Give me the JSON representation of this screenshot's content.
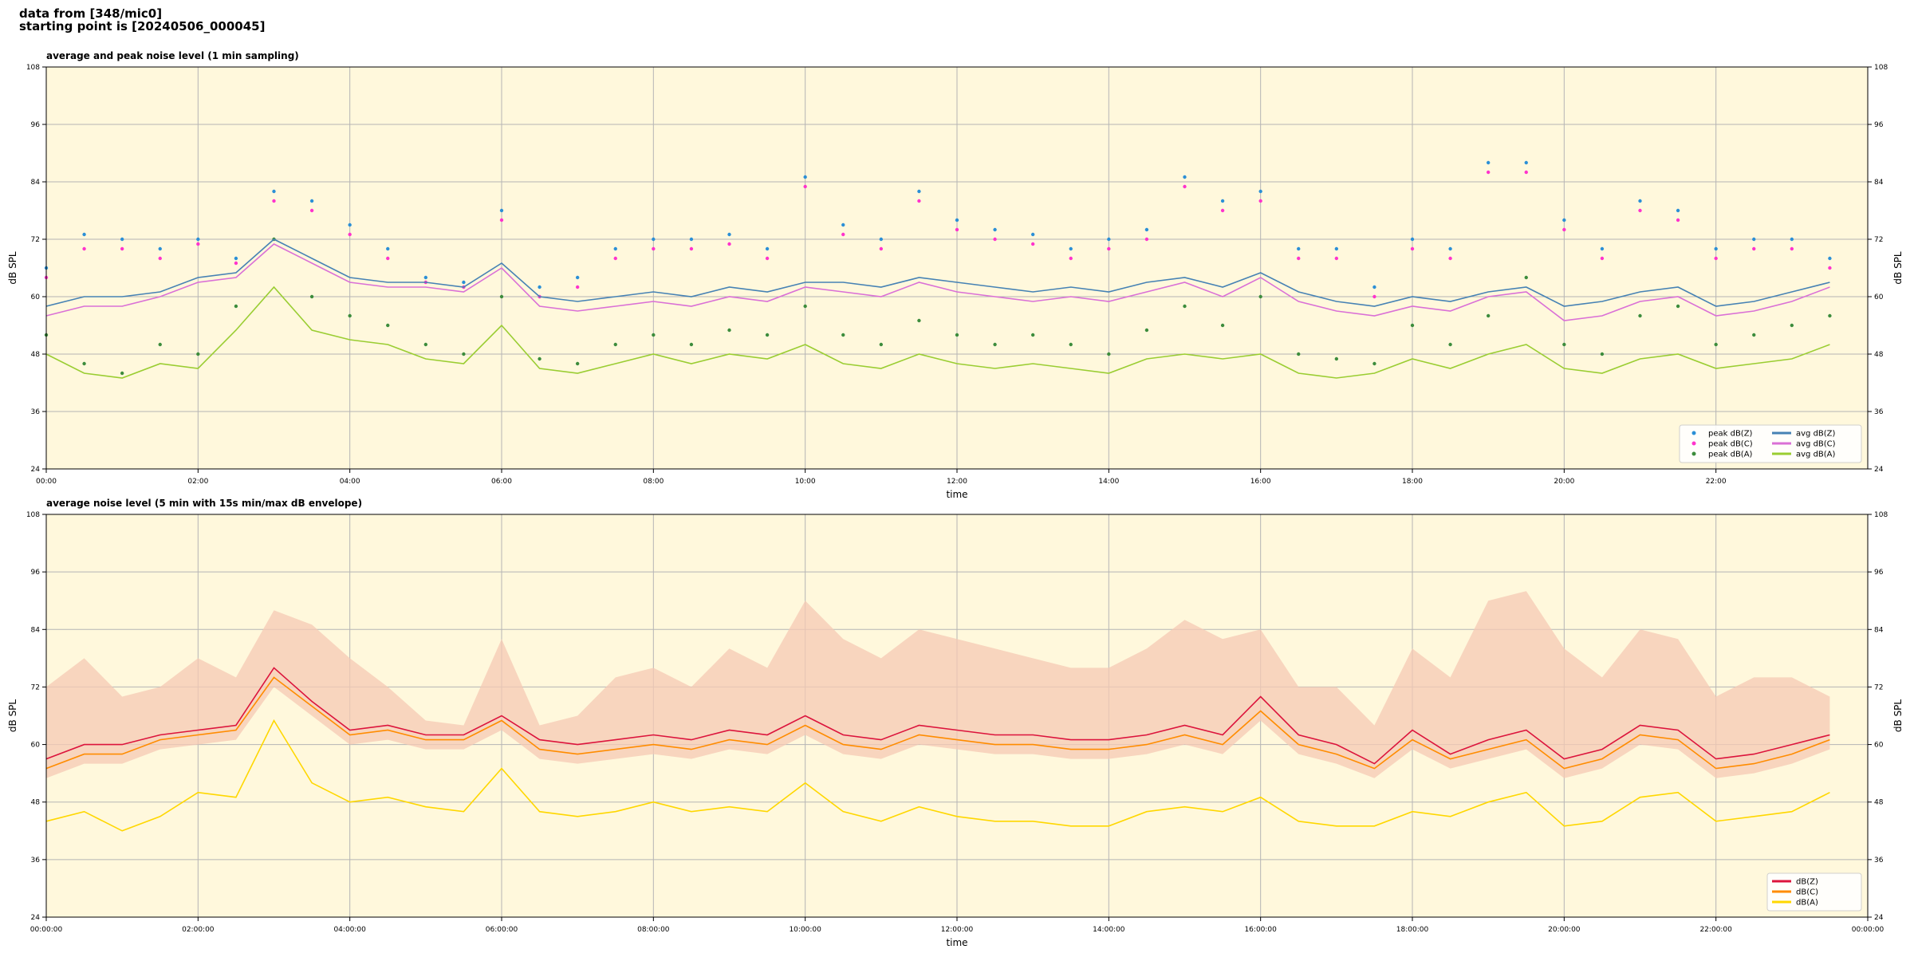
{
  "header": [
    "data from [348/mic0]",
    "starting point is [20240506_000045]"
  ],
  "chart_data": [
    {
      "type": "line",
      "title": "average and peak noise level (1 min sampling)",
      "xlabel": "time",
      "ylabel": "dB SPL",
      "xlim": [
        0,
        24
      ],
      "ylim": [
        24,
        108
      ],
      "yticks": [
        24,
        36,
        48,
        60,
        72,
        84,
        96,
        108
      ],
      "xticks": [
        {
          "value": 0,
          "label": "00:00"
        },
        {
          "value": 2,
          "label": "02:00"
        },
        {
          "value": 4,
          "label": "04:00"
        },
        {
          "value": 6,
          "label": "06:00"
        },
        {
          "value": 8,
          "label": "08:00"
        },
        {
          "value": 10,
          "label": "10:00"
        },
        {
          "value": 12,
          "label": "12:00"
        },
        {
          "value": 14,
          "label": "14:00"
        },
        {
          "value": 16,
          "label": "16:00"
        },
        {
          "value": 18,
          "label": "18:00"
        },
        {
          "value": 20,
          "label": "20:00"
        },
        {
          "value": 22,
          "label": "22:00"
        }
      ],
      "grid": true,
      "legend": "lower right",
      "legend_columns": 2,
      "background": "#fff8dc",
      "x": [
        0,
        0.5,
        1,
        1.5,
        2,
        2.5,
        3,
        3.5,
        4,
        4.5,
        5,
        5.5,
        6,
        6.5,
        7,
        7.5,
        8,
        8.5,
        9,
        9.5,
        10,
        10.5,
        11,
        11.5,
        12,
        12.5,
        13,
        13.5,
        14,
        14.5,
        15,
        15.5,
        16,
        16.5,
        17,
        17.5,
        18,
        18.5,
        19,
        19.5,
        20,
        20.5,
        21,
        21.5,
        22,
        22.5,
        23,
        23.5
      ],
      "series": [
        {
          "name": "peak dB(Z)",
          "color": "#2b8fd6",
          "marker": true,
          "values": [
            66,
            73,
            72,
            70,
            72,
            68,
            82,
            80,
            75,
            70,
            64,
            63,
            78,
            62,
            64,
            70,
            72,
            72,
            73,
            70,
            85,
            75,
            72,
            82,
            76,
            74,
            73,
            70,
            72,
            74,
            85,
            80,
            82,
            70,
            70,
            62,
            72,
            70,
            88,
            88,
            76,
            70,
            80,
            78,
            70,
            72,
            72,
            68
          ]
        },
        {
          "name": "peak dB(C)",
          "color": "#ff33cc",
          "marker": true,
          "values": [
            64,
            70,
            70,
            68,
            71,
            67,
            80,
            78,
            73,
            68,
            63,
            62,
            76,
            60,
            62,
            68,
            70,
            70,
            71,
            68,
            83,
            73,
            70,
            80,
            74,
            72,
            71,
            68,
            70,
            72,
            83,
            78,
            80,
            68,
            68,
            60,
            70,
            68,
            86,
            86,
            74,
            68,
            78,
            76,
            68,
            70,
            70,
            66
          ]
        },
        {
          "name": "peak dB(A)",
          "color": "#3c8c3c",
          "marker": true,
          "values": [
            52,
            46,
            44,
            50,
            48,
            58,
            72,
            60,
            56,
            54,
            50,
            48,
            60,
            47,
            46,
            50,
            52,
            50,
            53,
            52,
            58,
            52,
            50,
            55,
            52,
            50,
            52,
            50,
            48,
            53,
            58,
            54,
            60,
            48,
            47,
            46,
            54,
            50,
            56,
            64,
            50,
            48,
            56,
            58,
            50,
            52,
            54,
            56
          ]
        },
        {
          "name": "avg dB(Z)",
          "color": "#4682b4",
          "marker": false,
          "values": [
            58,
            60,
            60,
            61,
            64,
            65,
            72,
            68,
            64,
            63,
            63,
            62,
            67,
            60,
            59,
            60,
            61,
            60,
            62,
            61,
            63,
            63,
            62,
            64,
            63,
            62,
            61,
            62,
            61,
            63,
            64,
            62,
            65,
            61,
            59,
            58,
            60,
            59,
            61,
            62,
            58,
            59,
            61,
            62,
            58,
            59,
            61,
            63
          ]
        },
        {
          "name": "avg dB(C)",
          "color": "#da70d6",
          "marker": false,
          "values": [
            56,
            58,
            58,
            60,
            63,
            64,
            71,
            67,
            63,
            62,
            62,
            61,
            66,
            58,
            57,
            58,
            59,
            58,
            60,
            59,
            62,
            61,
            60,
            63,
            61,
            60,
            59,
            60,
            59,
            61,
            63,
            60,
            64,
            59,
            57,
            56,
            58,
            57,
            60,
            61,
            55,
            56,
            59,
            60,
            56,
            57,
            59,
            62
          ]
        },
        {
          "name": "avg dB(A)",
          "color": "#9acd32",
          "marker": false,
          "values": [
            48,
            44,
            43,
            46,
            45,
            53,
            62,
            53,
            51,
            50,
            47,
            46,
            54,
            45,
            44,
            46,
            48,
            46,
            48,
            47,
            50,
            46,
            45,
            48,
            46,
            45,
            46,
            45,
            44,
            47,
            48,
            47,
            48,
            44,
            43,
            44,
            47,
            45,
            48,
            50,
            45,
            44,
            47,
            48,
            45,
            46,
            47,
            50
          ]
        }
      ]
    },
    {
      "type": "line",
      "title": "average noise level (5 min with 15s min/max dB envelope)",
      "xlabel": "time",
      "ylabel": "dB SPL",
      "xlim": [
        0,
        24
      ],
      "ylim": [
        24,
        108
      ],
      "yticks": [
        24,
        36,
        48,
        60,
        72,
        84,
        96,
        108
      ],
      "xticks": [
        {
          "value": 0,
          "label": "00:00:00"
        },
        {
          "value": 2,
          "label": "02:00:00"
        },
        {
          "value": 4,
          "label": "04:00:00"
        },
        {
          "value": 6,
          "label": "06:00:00"
        },
        {
          "value": 8,
          "label": "08:00:00"
        },
        {
          "value": 10,
          "label": "10:00:00"
        },
        {
          "value": 12,
          "label": "12:00:00"
        },
        {
          "value": 14,
          "label": "14:00:00"
        },
        {
          "value": 16,
          "label": "16:00:00"
        },
        {
          "value": 18,
          "label": "18:00:00"
        },
        {
          "value": 20,
          "label": "20:00:00"
        },
        {
          "value": 22,
          "label": "22:00:00"
        },
        {
          "value": 24,
          "label": "00:00:00"
        }
      ],
      "grid": true,
      "legend": "lower right",
      "legend_columns": 1,
      "background": "#fff8dc",
      "x": [
        0,
        0.5,
        1,
        1.5,
        2,
        2.5,
        3,
        3.5,
        4,
        4.5,
        5,
        5.5,
        6,
        6.5,
        7,
        7.5,
        8,
        8.5,
        9,
        9.5,
        10,
        10.5,
        11,
        11.5,
        12,
        12.5,
        13,
        13.5,
        14,
        14.5,
        15,
        15.5,
        16,
        16.5,
        17,
        17.5,
        18,
        18.5,
        19,
        19.5,
        20,
        20.5,
        21,
        21.5,
        22,
        22.5,
        23,
        23.5
      ],
      "envelope": {
        "color": "#f6c9b4",
        "upper": [
          72,
          78,
          70,
          72,
          78,
          74,
          88,
          85,
          78,
          72,
          65,
          64,
          82,
          64,
          66,
          74,
          76,
          72,
          80,
          76,
          90,
          82,
          78,
          84,
          82,
          80,
          78,
          76,
          76,
          80,
          86,
          82,
          84,
          72,
          72,
          64,
          80,
          74,
          90,
          92,
          80,
          74,
          84,
          82,
          70,
          74,
          74,
          70
        ],
        "lower": [
          53,
          56,
          56,
          59,
          60,
          61,
          72,
          66,
          60,
          61,
          59,
          59,
          63,
          57,
          56,
          57,
          58,
          57,
          59,
          58,
          62,
          58,
          57,
          60,
          59,
          58,
          58,
          57,
          57,
          58,
          60,
          58,
          65,
          58,
          56,
          53,
          59,
          55,
          57,
          59,
          53,
          55,
          60,
          59,
          53,
          54,
          56,
          59
        ]
      },
      "series": [
        {
          "name": "dB(Z)",
          "color": "#dc143c",
          "marker": false,
          "values": [
            57,
            60,
            60,
            62,
            63,
            64,
            76,
            69,
            63,
            64,
            62,
            62,
            66,
            61,
            60,
            61,
            62,
            61,
            63,
            62,
            66,
            62,
            61,
            64,
            63,
            62,
            62,
            61,
            61,
            62,
            64,
            62,
            70,
            62,
            60,
            56,
            63,
            58,
            61,
            63,
            57,
            59,
            64,
            63,
            57,
            58,
            60,
            62
          ]
        },
        {
          "name": "dB(C)",
          "color": "#ff8c00",
          "marker": false,
          "values": [
            55,
            58,
            58,
            61,
            62,
            63,
            74,
            68,
            62,
            63,
            61,
            61,
            65,
            59,
            58,
            59,
            60,
            59,
            61,
            60,
            64,
            60,
            59,
            62,
            61,
            60,
            60,
            59,
            59,
            60,
            62,
            60,
            67,
            60,
            58,
            55,
            61,
            57,
            59,
            61,
            55,
            57,
            62,
            61,
            55,
            56,
            58,
            61
          ]
        },
        {
          "name": "dB(A)",
          "color": "#ffd700",
          "marker": false,
          "values": [
            44,
            46,
            42,
            45,
            50,
            49,
            65,
            52,
            48,
            49,
            47,
            46,
            55,
            46,
            45,
            46,
            48,
            46,
            47,
            46,
            52,
            46,
            44,
            47,
            45,
            44,
            44,
            43,
            43,
            46,
            47,
            46,
            49,
            44,
            43,
            43,
            46,
            45,
            48,
            50,
            43,
            44,
            49,
            50,
            44,
            45,
            46,
            50
          ]
        }
      ]
    }
  ]
}
